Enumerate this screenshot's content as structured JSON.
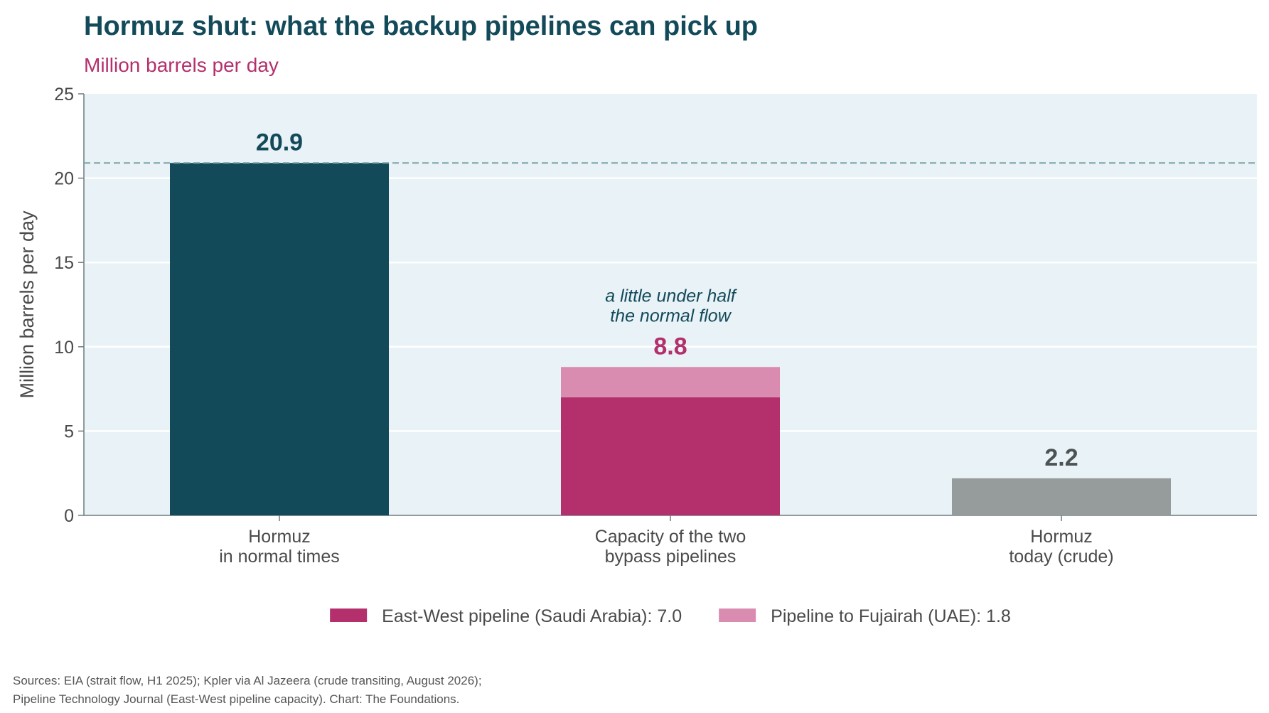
{
  "title": "Hormuz shut: what the backup pipelines can pick up",
  "subtitle": "Million barrels per day",
  "source_lines": [
    "Sources: EIA (strait flow, H1 2025); Kpler via Al Jazeera (crude transiting, August 2026);",
    "Pipeline Technology Journal (East-West pipeline capacity). Chart: The Foundations."
  ],
  "colors": {
    "title": "#134a5a",
    "subtitle": "#b3306c",
    "plot_background": "#e9f2f6",
    "gridline": "#ffffff",
    "reference_line": "#7aa3a6",
    "normal": "#134a5a",
    "east_west": "#b3306c",
    "fujairah": "#d98cb0",
    "today": "#969b9c",
    "axis_text": "#4a4a4a",
    "today_label": "#4d5355"
  },
  "chart_data": {
    "type": "bar",
    "stacked": true,
    "ylabel": "Million barrels per day",
    "ylim": [
      0,
      25
    ],
    "yticks": [
      0,
      5,
      10,
      15,
      20,
      25
    ],
    "grid": true,
    "legend_position": "bottom-center",
    "reference_line": {
      "y": 20.9,
      "style": "dashed"
    },
    "categories": [
      {
        "lines": [
          "Hormuz",
          "in normal times"
        ]
      },
      {
        "lines": [
          "Capacity of the two",
          "bypass pipelines"
        ]
      },
      {
        "lines": [
          "Hormuz",
          "today (crude)"
        ]
      }
    ],
    "segments": [
      [
        {
          "value": 20.9,
          "color_key": "normal"
        }
      ],
      [
        {
          "value": 7.0,
          "color_key": "east_west"
        },
        {
          "value": 1.8,
          "color_key": "fujairah"
        }
      ],
      [
        {
          "value": 2.2,
          "color_key": "today"
        }
      ]
    ],
    "totals": [
      {
        "value": 20.9,
        "label": "20.9",
        "color_key": "normal"
      },
      {
        "value": 8.8,
        "label": "8.8",
        "color_key": "east_west"
      },
      {
        "value": 2.2,
        "label": "2.2",
        "color_key": "today_label"
      }
    ],
    "annotation": {
      "category_index": 1,
      "lines": [
        "a little under half",
        "the normal flow"
      ]
    },
    "legend": [
      {
        "label": "East-West pipeline (Saudi Arabia): 7.0",
        "color_key": "east_west"
      },
      {
        "label": "Pipeline to Fujairah (UAE): 1.8",
        "color_key": "fujairah"
      }
    ]
  }
}
